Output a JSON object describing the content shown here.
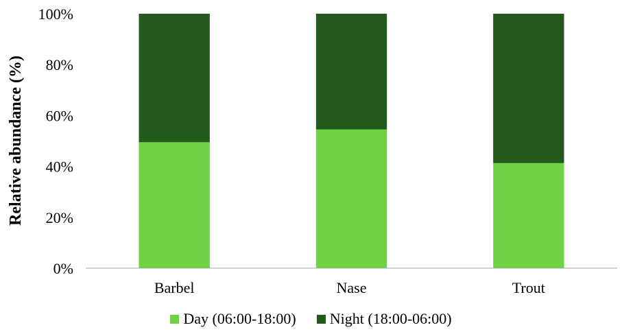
{
  "chart_data": {
    "type": "bar",
    "stacked": true,
    "categories": [
      "Barbel",
      "Nase",
      "Trout"
    ],
    "series": [
      {
        "name": "Day (06:00-18:00)",
        "values": [
          49.5,
          54.5,
          41.3
        ],
        "color": "#6fd244"
      },
      {
        "name": "Night (18:00-06:00)",
        "values": [
          50.5,
          45.5,
          58.7
        ],
        "color": "#215a1b"
      }
    ],
    "ylabel": "Relative abundance (%)",
    "xlabel": "",
    "ylim": [
      0,
      100
    ],
    "yticks": [
      "0%",
      "20%",
      "40%",
      "60%",
      "80%",
      "100%"
    ],
    "grid": false,
    "legend_position": "bottom"
  }
}
